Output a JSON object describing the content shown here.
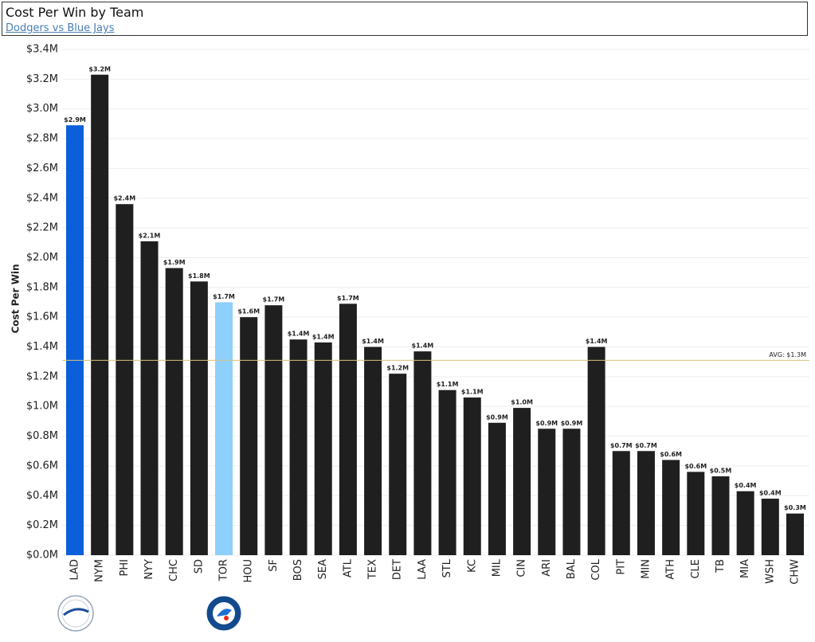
{
  "chart_data": {
    "type": "bar",
    "title": "Cost Per Win by Team",
    "subtitle": "Dodgers vs Blue Jays",
    "y_label": "Cost Per Win",
    "categories": [
      "LAD",
      "NYM",
      "PHI",
      "NYY",
      "CHC",
      "SD",
      "TOR",
      "HOU",
      "SF",
      "BOS",
      "SEA",
      "ATL",
      "TEX",
      "DET",
      "LAA",
      "STL",
      "KC",
      "MIL",
      "CIN",
      "ARI",
      "BAL",
      "COL",
      "PIT",
      "MIN",
      "ATH",
      "CLE",
      "TB",
      "MIA",
      "WSH",
      "CHW"
    ],
    "values": [
      2.89,
      3.23,
      2.36,
      2.11,
      1.93,
      1.84,
      1.7,
      1.6,
      1.68,
      1.45,
      1.43,
      1.69,
      1.4,
      1.22,
      1.37,
      1.11,
      1.06,
      0.89,
      0.99,
      0.85,
      0.85,
      1.4,
      0.7,
      0.7,
      0.64,
      0.56,
      0.53,
      0.43,
      0.38,
      0.28
    ],
    "value_labels": [
      "$2.9M",
      "$3.2M",
      "$2.4M",
      "$2.1M",
      "$1.9M",
      "$1.8M",
      "$1.7M",
      "$1.6M",
      "$1.7M",
      "$1.4M",
      "$1.4M",
      "$1.7M",
      "$1.4M",
      "$1.2M",
      "$1.4M",
      "$1.1M",
      "$1.1M",
      "$0.9M",
      "$1.0M",
      "$0.9M",
      "$0.9M",
      "$1.4M",
      "$0.7M",
      "$0.7M",
      "$0.6M",
      "$0.6M",
      "$0.5M",
      "$0.4M",
      "$0.4M",
      "$0.3M"
    ],
    "colors": [
      "#0b5fd9",
      "#1f1f1f",
      "#1f1f1f",
      "#1f1f1f",
      "#1f1f1f",
      "#1f1f1f",
      "#8fcffb",
      "#1f1f1f",
      "#1f1f1f",
      "#1f1f1f",
      "#1f1f1f",
      "#1f1f1f",
      "#1f1f1f",
      "#1f1f1f",
      "#1f1f1f",
      "#1f1f1f",
      "#1f1f1f",
      "#1f1f1f",
      "#1f1f1f",
      "#1f1f1f",
      "#1f1f1f",
      "#1f1f1f",
      "#1f1f1f",
      "#1f1f1f",
      "#1f1f1f",
      "#1f1f1f",
      "#1f1f1f",
      "#1f1f1f",
      "#1f1f1f",
      "#1f1f1f"
    ],
    "ylim": [
      0,
      3.4
    ],
    "yticks": [
      {
        "value": 0,
        "label": "$0.0M"
      },
      {
        "value": 0.2,
        "label": "$0.2M"
      },
      {
        "value": 0.4,
        "label": "$0.4M"
      },
      {
        "value": 0.6,
        "label": "$0.6M"
      },
      {
        "value": 0.8,
        "label": "$0.8M"
      },
      {
        "value": 1.0,
        "label": "$1.0M"
      },
      {
        "value": 1.2,
        "label": "$1.2M"
      },
      {
        "value": 1.4,
        "label": "$1.4M"
      },
      {
        "value": 1.6,
        "label": "$1.6M"
      },
      {
        "value": 1.8,
        "label": "$1.8M"
      },
      {
        "value": 2.0,
        "label": "$2.0M"
      },
      {
        "value": 2.2,
        "label": "$2.2M"
      },
      {
        "value": 2.4,
        "label": "$2.4M"
      },
      {
        "value": 2.6,
        "label": "$2.6M"
      },
      {
        "value": 2.8,
        "label": "$2.8M"
      },
      {
        "value": 3.0,
        "label": "$3.0M"
      },
      {
        "value": 3.2,
        "label": "$3.2M"
      },
      {
        "value": 3.4,
        "label": "$3.4M"
      }
    ],
    "grid": true,
    "reference_line": {
      "value": 1.31,
      "label": "AVG: $1.3M",
      "color": "#d8c27a"
    }
  }
}
